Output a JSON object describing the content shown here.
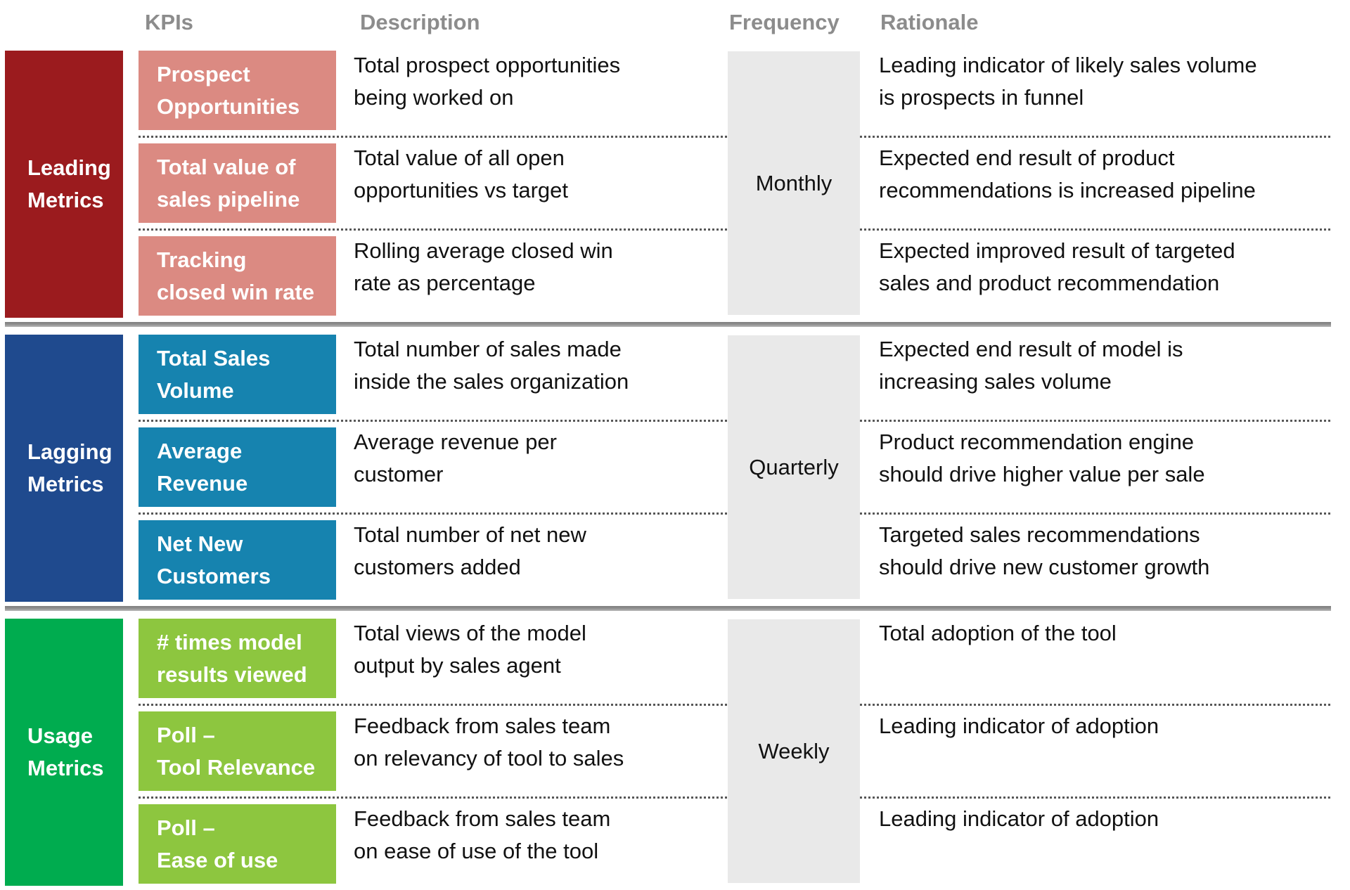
{
  "header": {
    "columns": {
      "kpis": "KPIs",
      "description": "Description",
      "frequency": "Frequency",
      "rationale": "Rationale"
    }
  },
  "colors": {
    "header_text": "#8C8C8C",
    "frequency_bg": "#E9E9E9",
    "leading_sidebar": "#9B1B1E",
    "leading_kpi": "#DB8A82",
    "lagging_sidebar": "#1F4A8E",
    "lagging_kpi": "#1683AF",
    "usage_sidebar": "#00AC4F",
    "usage_kpi": "#8DC63F"
  },
  "groups": [
    {
      "label": "Leading\nMetrics",
      "sidebar_color": "#9B1B1E",
      "kpi_color": "#DB8A82",
      "frequency": "Monthly",
      "rows": [
        {
          "kpi": "Prospect\nOpportunities",
          "description": "Total prospect opportunities\nbeing worked on",
          "rationale": "Leading indicator of likely sales volume\nis prospects in funnel"
        },
        {
          "kpi": "Total value of\nsales pipeline",
          "description": "Total value of all open\nopportunities vs target",
          "rationale": "Expected end result of product\nrecommendations is increased pipeline"
        },
        {
          "kpi": "Tracking\nclosed win rate",
          "description": "Rolling average closed win\nrate as percentage",
          "rationale": "Expected improved result of targeted\nsales and product recommendation"
        }
      ]
    },
    {
      "label": "Lagging\nMetrics",
      "sidebar_color": "#1F4A8E",
      "kpi_color": "#1683AF",
      "frequency": "Quarterly",
      "rows": [
        {
          "kpi": "Total Sales\nVolume",
          "description": "Total number of sales made\ninside the sales organization",
          "rationale": "Expected end result of model is\nincreasing sales volume"
        },
        {
          "kpi": "Average\nRevenue",
          "description": "Average revenue per\ncustomer",
          "rationale": "Product recommendation engine\nshould drive higher value per sale"
        },
        {
          "kpi": "Net New\nCustomers",
          "description": "Total number of net new\ncustomers added",
          "rationale": "Targeted sales recommendations\nshould drive new customer growth"
        }
      ]
    },
    {
      "label": "Usage\nMetrics",
      "sidebar_color": "#00AC4F",
      "kpi_color": "#8DC63F",
      "frequency": "Weekly",
      "rows": [
        {
          "kpi": "# times model\nresults viewed",
          "description": "Total views of the model\noutput by sales agent",
          "rationale": "Total adoption of the tool"
        },
        {
          "kpi": "Poll –\nTool Relevance",
          "description": "Feedback from sales team\non relevancy of tool to sales",
          "rationale": "Leading indicator of adoption"
        },
        {
          "kpi": "Poll –\nEase of use",
          "description": "Feedback from sales team\non ease of use of the tool",
          "rationale": "Leading indicator of adoption"
        }
      ]
    }
  ]
}
